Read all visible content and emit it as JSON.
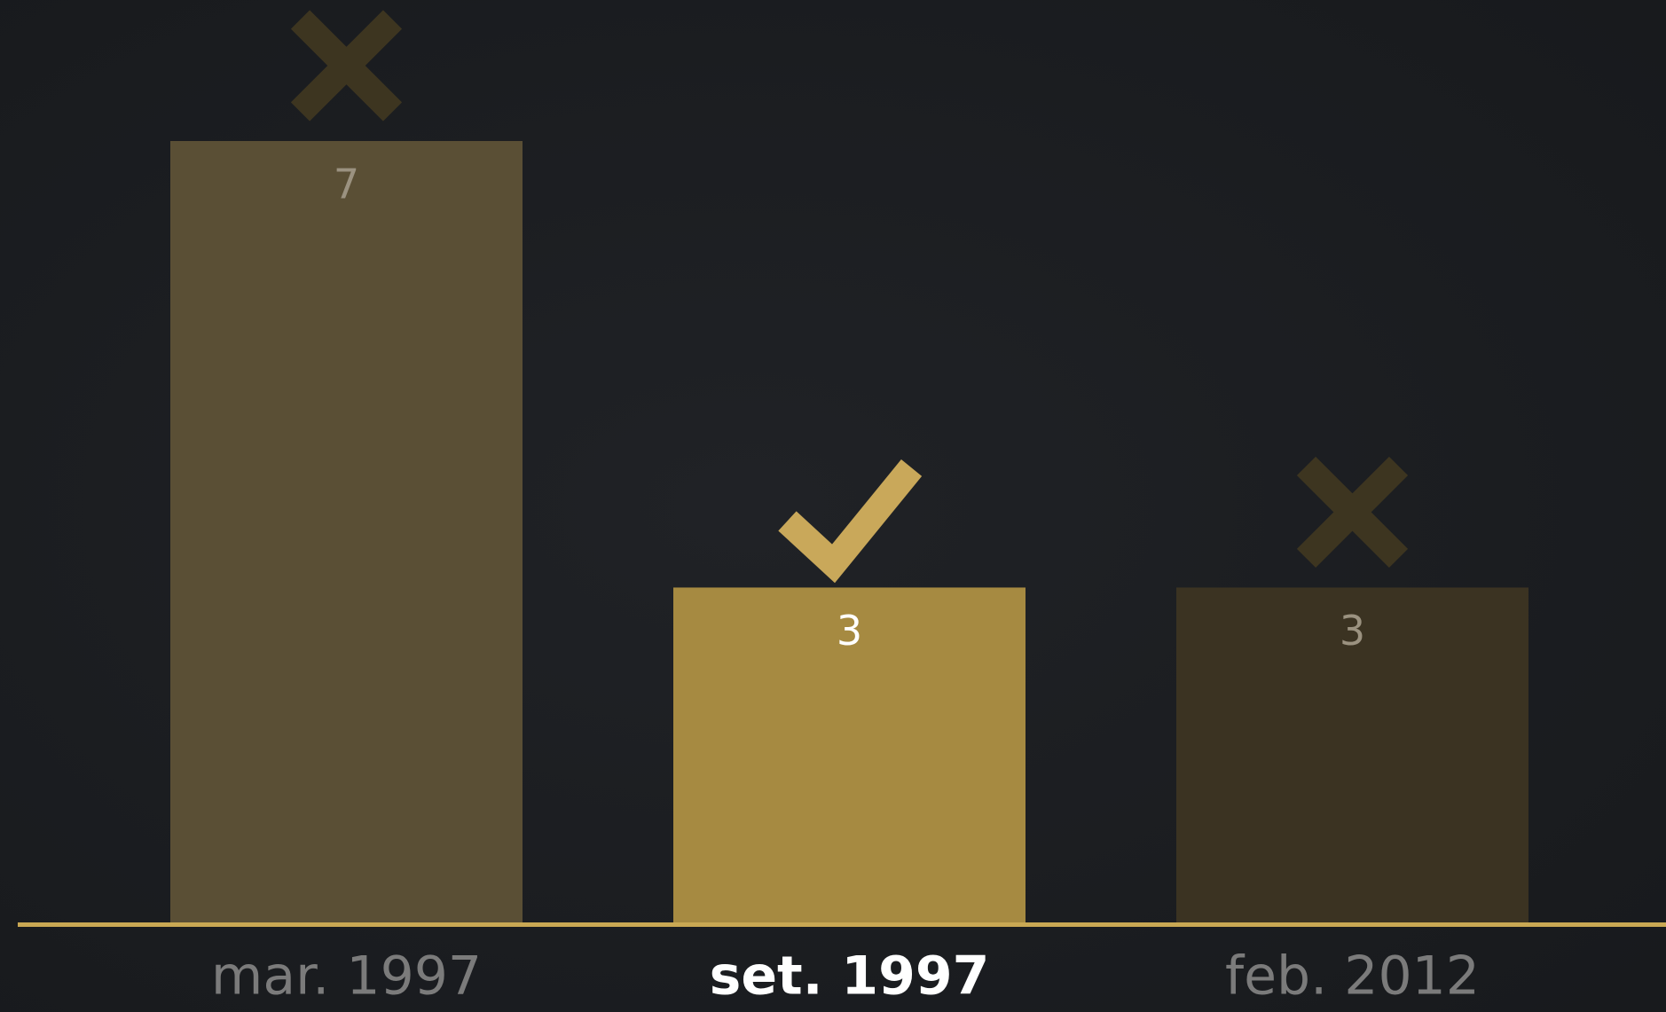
{
  "chart_data": {
    "type": "bar",
    "categories": [
      "mar. 1997",
      "set. 1997",
      "feb. 2012"
    ],
    "values": [
      7,
      3,
      3
    ],
    "colors": [
      "#5a4f35",
      "#a68a41",
      "#3b3322"
    ]
  }
}
